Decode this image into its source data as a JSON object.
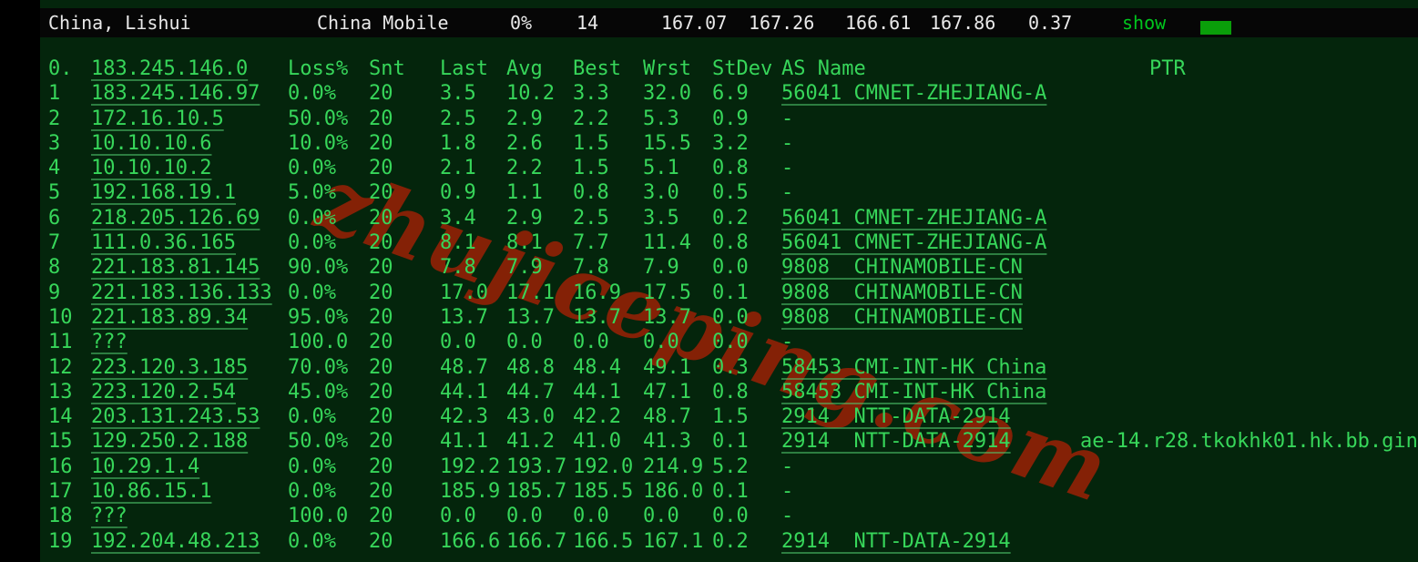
{
  "colors": {
    "background": "#04250c",
    "band_black": "#060606",
    "left_strip_black": "#000000",
    "table_green": "#37d65a",
    "band_text_white": "#e9e9e9",
    "show_green": "#00c61d",
    "bar_green": "#0a9e0a",
    "watermark_red": "#8b2106"
  },
  "band": {
    "location": "China, Lishui",
    "isp": "China Mobile",
    "loss": "0%",
    "sent": "14",
    "last": "167.07",
    "avg": "167.26",
    "best": "166.61",
    "worst": "167.86",
    "stdev": "0.37",
    "show_label": "show",
    "bar_icon": "green-bar-indicator"
  },
  "table": {
    "header_row": {
      "hop": "0.",
      "ip": "183.245.146.0",
      "loss": "Loss%",
      "snt": "Snt",
      "last": "Last",
      "avg": "Avg",
      "best": "Best",
      "wrst": "Wrst",
      "stdev": "StDev",
      "asname": "AS Name",
      "ptr": "PTR"
    },
    "rows": [
      {
        "hop": "1",
        "ip": "183.245.146.97",
        "loss": "0.0%",
        "snt": "20",
        "last": "3.5",
        "avg": "10.2",
        "best": "3.3",
        "wrst": "32.0",
        "stdev": "6.9",
        "asname": "56041 CMNET-ZHEJIANG-A",
        "ptr": ""
      },
      {
        "hop": "2",
        "ip": "172.16.10.5",
        "loss": "50.0%",
        "snt": "20",
        "last": "2.5",
        "avg": "2.9",
        "best": "2.2",
        "wrst": "5.3",
        "stdev": "0.9",
        "asname": "-",
        "ptr": ""
      },
      {
        "hop": "3",
        "ip": "10.10.10.6",
        "loss": "10.0%",
        "snt": "20",
        "last": "1.8",
        "avg": "2.6",
        "best": "1.5",
        "wrst": "15.5",
        "stdev": "3.2",
        "asname": "-",
        "ptr": ""
      },
      {
        "hop": "4",
        "ip": "10.10.10.2",
        "loss": "0.0%",
        "snt": "20",
        "last": "2.1",
        "avg": "2.2",
        "best": "1.5",
        "wrst": "5.1",
        "stdev": "0.8",
        "asname": "-",
        "ptr": ""
      },
      {
        "hop": "5",
        "ip": "192.168.19.1",
        "loss": "5.0%",
        "snt": "20",
        "last": "0.9",
        "avg": "1.1",
        "best": "0.8",
        "wrst": "3.0",
        "stdev": "0.5",
        "asname": "-",
        "ptr": ""
      },
      {
        "hop": "6",
        "ip": "218.205.126.69",
        "loss": "0.0%",
        "snt": "20",
        "last": "3.4",
        "avg": "2.9",
        "best": "2.5",
        "wrst": "3.5",
        "stdev": "0.2",
        "asname": "56041 CMNET-ZHEJIANG-A",
        "ptr": ""
      },
      {
        "hop": "7",
        "ip": "111.0.36.165",
        "loss": "0.0%",
        "snt": "20",
        "last": "8.1",
        "avg": "8.1",
        "best": "7.7",
        "wrst": "11.4",
        "stdev": "0.8",
        "asname": "56041 CMNET-ZHEJIANG-A",
        "ptr": ""
      },
      {
        "hop": "8",
        "ip": "221.183.81.145",
        "loss": "90.0%",
        "snt": "20",
        "last": "7.8",
        "avg": "7.9",
        "best": "7.8",
        "wrst": "7.9",
        "stdev": "0.0",
        "asname": "9808  CHINAMOBILE-CN",
        "ptr": ""
      },
      {
        "hop": "9",
        "ip": "221.183.136.133",
        "loss": "0.0%",
        "snt": "20",
        "last": "17.0",
        "avg": "17.1",
        "best": "16.9",
        "wrst": "17.5",
        "stdev": "0.1",
        "asname": "9808  CHINAMOBILE-CN",
        "ptr": ""
      },
      {
        "hop": "10",
        "ip": "221.183.89.34",
        "loss": "95.0%",
        "snt": "20",
        "last": "13.7",
        "avg": "13.7",
        "best": "13.7",
        "wrst": "13.7",
        "stdev": "0.0",
        "asname": "9808  CHINAMOBILE-CN",
        "ptr": ""
      },
      {
        "hop": "11",
        "ip": "???",
        "loss": "100.0",
        "snt": "20",
        "last": "0.0",
        "avg": "0.0",
        "best": "0.0",
        "wrst": "0.0",
        "stdev": "0.0",
        "asname": "-",
        "ptr": ""
      },
      {
        "hop": "12",
        "ip": "223.120.3.185",
        "loss": "70.0%",
        "snt": "20",
        "last": "48.7",
        "avg": "48.8",
        "best": "48.4",
        "wrst": "49.1",
        "stdev": "0.3",
        "asname": "58453 CMI-INT-HK China",
        "ptr": ""
      },
      {
        "hop": "13",
        "ip": "223.120.2.54",
        "loss": "45.0%",
        "snt": "20",
        "last": "44.1",
        "avg": "44.7",
        "best": "44.1",
        "wrst": "47.1",
        "stdev": "0.8",
        "asname": "58453 CMI-INT-HK China",
        "ptr": ""
      },
      {
        "hop": "14",
        "ip": "203.131.243.53",
        "loss": "0.0%",
        "snt": "20",
        "last": "42.3",
        "avg": "43.0",
        "best": "42.2",
        "wrst": "48.7",
        "stdev": "1.5",
        "asname": "2914  NTT-DATA-2914",
        "ptr": ""
      },
      {
        "hop": "15",
        "ip": "129.250.2.188",
        "loss": "50.0%",
        "snt": "20",
        "last": "41.1",
        "avg": "41.2",
        "best": "41.0",
        "wrst": "41.3",
        "stdev": "0.1",
        "asname": "2914  NTT-DATA-2914",
        "ptr": "ae-14.r28.tkokhk01.hk.bb.gin."
      },
      {
        "hop": "16",
        "ip": "10.29.1.4",
        "loss": "0.0%",
        "snt": "20",
        "last": "192.2",
        "avg": "193.7",
        "best": "192.0",
        "wrst": "214.9",
        "stdev": "5.2",
        "asname": "-",
        "ptr": ""
      },
      {
        "hop": "17",
        "ip": "10.86.15.1",
        "loss": "0.0%",
        "snt": "20",
        "last": "185.9",
        "avg": "185.7",
        "best": "185.5",
        "wrst": "186.0",
        "stdev": "0.1",
        "asname": "-",
        "ptr": ""
      },
      {
        "hop": "18",
        "ip": "???",
        "loss": "100.0",
        "snt": "20",
        "last": "0.0",
        "avg": "0.0",
        "best": "0.0",
        "wrst": "0.0",
        "stdev": "0.0",
        "asname": "-",
        "ptr": ""
      },
      {
        "hop": "19",
        "ip": "192.204.48.213",
        "loss": "0.0%",
        "snt": "20",
        "last": "166.6",
        "avg": "166.7",
        "best": "166.5",
        "wrst": "167.1",
        "stdev": "0.2",
        "asname": "2914  NTT-DATA-2914",
        "ptr": ""
      }
    ]
  },
  "watermark": {
    "text": "zhujiceping.com"
  }
}
